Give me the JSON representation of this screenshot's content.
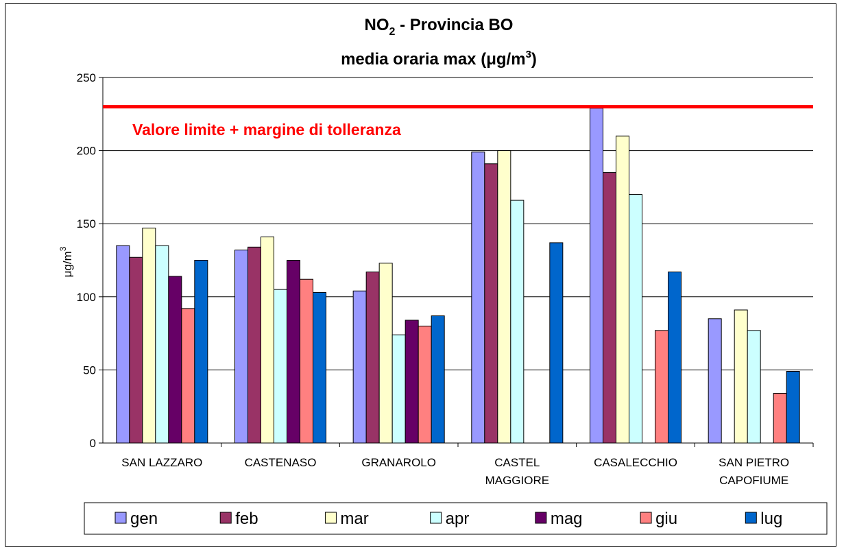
{
  "chart_data": {
    "type": "bar",
    "title": {
      "line1_pre": "NO",
      "line1_sub": "2",
      "line1_post": " - Provincia BO",
      "line2_pre": "media oraria max (",
      "line2_mu": "μ",
      "line2_unit": "g/m",
      "line2_sup": "3",
      "line2_post": ")"
    },
    "ylabel": {
      "mu": "μ",
      "unit": "g/m",
      "sup": "3"
    },
    "ylim": [
      0,
      250
    ],
    "yticks": [
      "0",
      "50",
      "100",
      "150",
      "200",
      "250"
    ],
    "grid": true,
    "categories": [
      [
        "SAN LAZZARO"
      ],
      [
        "CASTENASO"
      ],
      [
        "GRANAROLO"
      ],
      [
        "CASTEL",
        "MAGGIORE"
      ],
      [
        "CASALECCHIO"
      ],
      [
        "SAN PIETRO",
        "CAPOFIUME"
      ]
    ],
    "series": [
      {
        "name": "gen",
        "color": "#9999ff",
        "values": [
          135,
          132,
          104,
          199,
          229,
          85
        ]
      },
      {
        "name": "feb",
        "color": "#993366",
        "values": [
          127,
          134,
          117,
          191,
          185,
          null
        ]
      },
      {
        "name": "mar",
        "color": "#ffffcc",
        "values": [
          147,
          141,
          123,
          200,
          210,
          91
        ]
      },
      {
        "name": "apr",
        "color": "#ccffff",
        "values": [
          135,
          105,
          74,
          166,
          170,
          77
        ]
      },
      {
        "name": "mag",
        "color": "#660066",
        "values": [
          114,
          125,
          84,
          null,
          null,
          null
        ]
      },
      {
        "name": "giu",
        "color": "#ff8080",
        "values": [
          92,
          112,
          80,
          null,
          77,
          34
        ]
      },
      {
        "name": "lug",
        "color": "#0066cc",
        "values": [
          125,
          103,
          87,
          137,
          117,
          49
        ]
      }
    ],
    "reference_line": {
      "value": 230,
      "color": "#ff0000",
      "label": "Valore limite + margine di tolleranza"
    },
    "legend_position": "bottom"
  }
}
